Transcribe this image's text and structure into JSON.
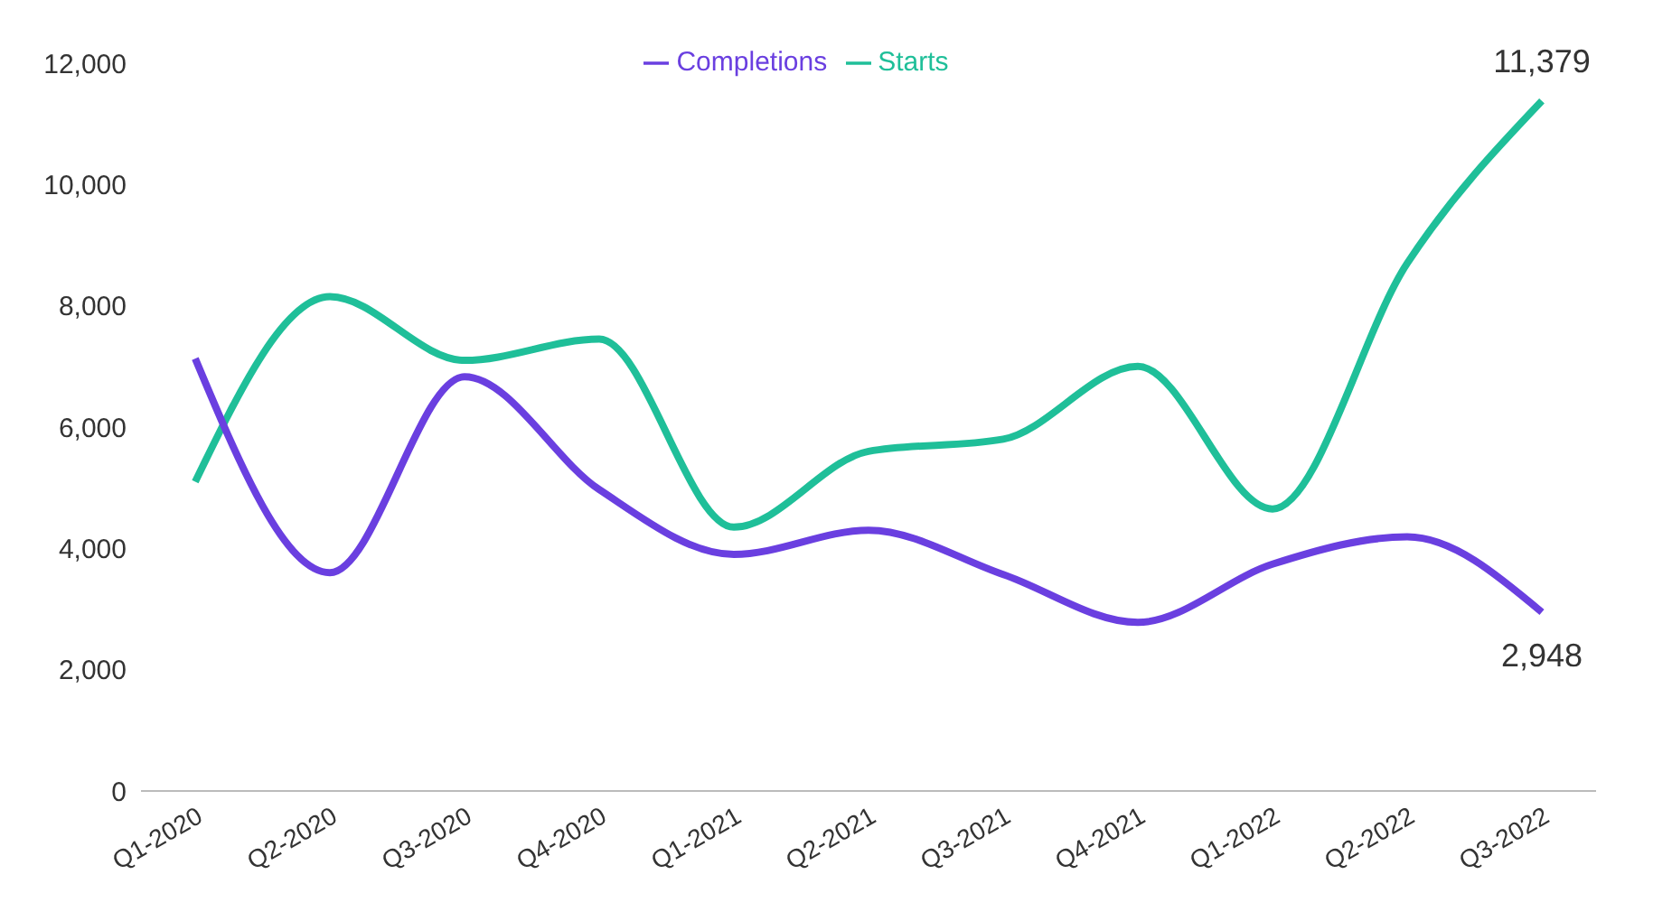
{
  "chart_data": {
    "type": "line",
    "categories": [
      "Q1-2020",
      "Q2-2020",
      "Q3-2020",
      "Q4-2020",
      "Q1-2021",
      "Q2-2021",
      "Q3-2021",
      "Q4-2021",
      "Q1-2022",
      "Q2-2022",
      "Q3-2022"
    ],
    "series": [
      {
        "name": "Starts",
        "color": "#1fbf99",
        "values": [
          5100,
          8150,
          7100,
          7450,
          4350,
          5600,
          5800,
          7000,
          4650,
          8700,
          11379
        ],
        "value_labels": [
          null,
          null,
          null,
          null,
          null,
          null,
          null,
          null,
          null,
          null,
          "11,379"
        ]
      },
      {
        "name": "Completions",
        "color": "#6a3fe0",
        "values": [
          7130,
          3600,
          6830,
          4970,
          3900,
          4300,
          3570,
          2780,
          3740,
          4190,
          2948
        ],
        "value_labels": [
          null,
          null,
          null,
          null,
          null,
          null,
          null,
          null,
          null,
          null,
          "2,948"
        ]
      }
    ],
    "ylim": [
      0,
      12000
    ],
    "yticks": [
      {
        "value": 0,
        "label": "0"
      },
      {
        "value": 2000,
        "label": "2,000"
      },
      {
        "value": 4000,
        "label": "4,000"
      },
      {
        "value": 6000,
        "label": "6,000"
      },
      {
        "value": 8000,
        "label": "8,000"
      },
      {
        "value": 10000,
        "label": "10,000"
      },
      {
        "value": 12000,
        "label": "12,000"
      }
    ],
    "legend": "top",
    "grid": false,
    "marker": "none",
    "line_style": "solid"
  }
}
